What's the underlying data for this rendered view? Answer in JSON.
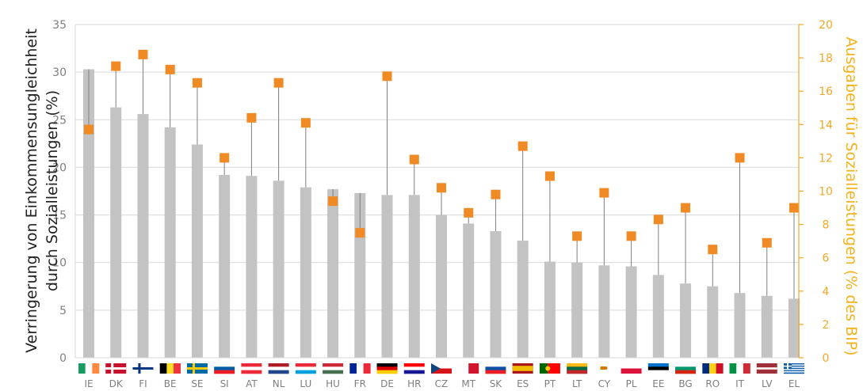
{
  "chart_data": {
    "type": "bar",
    "categories": [
      "IE",
      "DK",
      "FI",
      "BE",
      "SE",
      "SI",
      "AT",
      "NL",
      "LU",
      "HU",
      "FR",
      "DE",
      "HR",
      "CZ",
      "MT",
      "SK",
      "ES",
      "PT",
      "LT",
      "CY",
      "PL",
      "EE",
      "BG",
      "RO",
      "IT",
      "LV",
      "EL"
    ],
    "series": [
      {
        "axis": "left",
        "mark": "bar",
        "color": "#c3c3c3",
        "values": [
          30.3,
          26.3,
          25.6,
          24.2,
          22.4,
          19.2,
          19.1,
          18.6,
          17.9,
          17.7,
          17.3,
          17.1,
          17.1,
          15.0,
          14.1,
          13.3,
          12.3,
          10.1,
          10.0,
          9.7,
          9.6,
          8.7,
          7.8,
          7.5,
          6.8,
          6.5,
          6.2
        ]
      },
      {
        "axis": "right",
        "mark": "square",
        "color": "#f08a24",
        "values": [
          13.7,
          17.5,
          18.2,
          17.3,
          16.5,
          12.0,
          14.4,
          16.5,
          14.1,
          9.4,
          7.5,
          16.9,
          11.9,
          10.2,
          8.7,
          9.8,
          12.7,
          10.9,
          7.3,
          9.9,
          7.3,
          8.3,
          9.0,
          6.5,
          12.0,
          6.9,
          9.0
        ]
      }
    ],
    "ylabel": "Verringerung von Einkommensungleichheit durch Sozialleistungen (%)",
    "ylabel_lines": [
      "Verringerung von Einkommensungleichheit",
      "durch Sozialleistungen (%)"
    ],
    "y2label": "Ausgaben für Sozialleistungen (% des BIP)",
    "ylim": [
      0,
      35
    ],
    "yticks": [
      0,
      5,
      10,
      15,
      20,
      25,
      30,
      35
    ],
    "y2lim": [
      0,
      20
    ],
    "y2ticks": [
      0,
      2,
      4,
      6,
      8,
      10,
      12,
      14,
      16,
      18,
      20
    ],
    "grid": "horizontal",
    "connector_lines": true,
    "x_flag_icons": true
  },
  "colors": {
    "bar": "#c3c3c3",
    "marker": "#f08a24",
    "right_axis": "#f5a623",
    "grid": "#d9d9d9",
    "connector": "#7f7f7f"
  },
  "flags": {
    "IE": {
      "kind": "v",
      "colors": [
        "#169b62",
        "#ffffff",
        "#ff883e"
      ]
    },
    "DK": {
      "kind": "nordic",
      "colors": [
        "#c8102e",
        "#ffffff"
      ]
    },
    "FI": {
      "kind": "nordic",
      "colors": [
        "#ffffff",
        "#003580"
      ]
    },
    "BE": {
      "kind": "v",
      "colors": [
        "#000000",
        "#fdda24",
        "#ef3340"
      ]
    },
    "SE": {
      "kind": "nordic",
      "colors": [
        "#006aa7",
        "#fecc00"
      ]
    },
    "SI": {
      "kind": "h",
      "colors": [
        "#ffffff",
        "#005da4",
        "#ed1c24"
      ]
    },
    "AT": {
      "kind": "h",
      "colors": [
        "#ed2939",
        "#ffffff",
        "#ed2939"
      ]
    },
    "NL": {
      "kind": "h",
      "colors": [
        "#ae1c28",
        "#ffffff",
        "#21468b"
      ]
    },
    "LU": {
      "kind": "h",
      "colors": [
        "#ed2939",
        "#ffffff",
        "#00a1de"
      ]
    },
    "HU": {
      "kind": "h",
      "colors": [
        "#ce2939",
        "#ffffff",
        "#477050"
      ]
    },
    "FR": {
      "kind": "v",
      "colors": [
        "#002395",
        "#ffffff",
        "#ed2939"
      ]
    },
    "DE": {
      "kind": "h",
      "colors": [
        "#000000",
        "#dd0000",
        "#ffce00"
      ]
    },
    "HR": {
      "kind": "h",
      "colors": [
        "#ff0000",
        "#ffffff",
        "#171796"
      ]
    },
    "CZ": {
      "kind": "cz",
      "colors": [
        "#ffffff",
        "#d7141a",
        "#11457e"
      ]
    },
    "MT": {
      "kind": "v2",
      "colors": [
        "#ffffff",
        "#cf142b"
      ]
    },
    "SK": {
      "kind": "h",
      "colors": [
        "#ffffff",
        "#0b4ea2",
        "#ee1c25"
      ]
    },
    "ES": {
      "kind": "es",
      "colors": [
        "#aa151b",
        "#f1bf00",
        "#aa151b"
      ]
    },
    "PT": {
      "kind": "pt",
      "colors": [
        "#006600",
        "#ff0000"
      ]
    },
    "LT": {
      "kind": "h",
      "colors": [
        "#fdb913",
        "#006a44",
        "#c1272d"
      ]
    },
    "CY": {
      "kind": "plain",
      "colors": [
        "#ffffff",
        "#d57800"
      ]
    },
    "PL": {
      "kind": "h2",
      "colors": [
        "#ffffff",
        "#dc143c"
      ]
    },
    "EE": {
      "kind": "h",
      "colors": [
        "#0072ce",
        "#000000",
        "#ffffff"
      ]
    },
    "BG": {
      "kind": "h",
      "colors": [
        "#ffffff",
        "#00966e",
        "#d62612"
      ]
    },
    "RO": {
      "kind": "v",
      "colors": [
        "#002b7f",
        "#fcd116",
        "#ce1126"
      ]
    },
    "IT": {
      "kind": "v",
      "colors": [
        "#009246",
        "#ffffff",
        "#ce2b37"
      ]
    },
    "LV": {
      "kind": "lv",
      "colors": [
        "#9e3039",
        "#ffffff"
      ]
    },
    "EL": {
      "kind": "el",
      "colors": [
        "#0d5eaf",
        "#ffffff"
      ]
    }
  }
}
